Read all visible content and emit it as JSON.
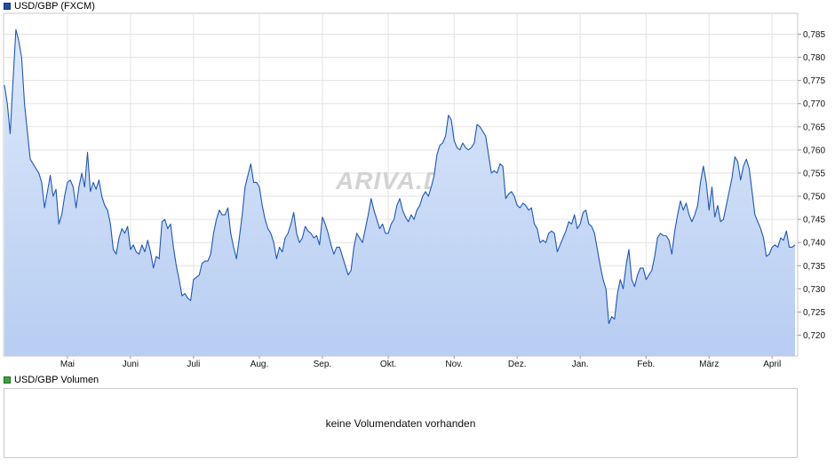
{
  "price_legend": {
    "label": "USD/GBP (FXCM)",
    "color": "#1f4fa0"
  },
  "volume_legend": {
    "label": "USD/GBP Volumen",
    "color": "#3aa63a"
  },
  "volume_panel": {
    "message": "keine Volumendaten vorhanden"
  },
  "watermark": {
    "text": "ARIVA.DE"
  },
  "colors": {
    "line": "#1f57b8",
    "fill_top": "#dde9fb",
    "fill_bottom": "#b7cdf2",
    "grid": "#e3e3e3",
    "frame": "#c9c9c9"
  },
  "chart_data": {
    "type": "area",
    "title": "USD/GBP (FXCM)",
    "xlabel": "",
    "ylabel": "",
    "ylim": [
      0.7155,
      0.7895
    ],
    "yticks": [
      0.72,
      0.725,
      0.73,
      0.735,
      0.74,
      0.745,
      0.75,
      0.755,
      0.76,
      0.765,
      0.77,
      0.775,
      0.78,
      0.785
    ],
    "ytick_labels": [
      "0,720",
      "0,725",
      "0,730",
      "0,735",
      "0,740",
      "0,745",
      "0,750",
      "0,755",
      "0,760",
      "0,765",
      "0,770",
      "0,775",
      "0,780",
      "0,785"
    ],
    "xticks": [
      "Mai",
      "Juni",
      "Juli",
      "Aug.",
      "Sep.",
      "Okt.",
      "Nov.",
      "Dez.",
      "Jan.",
      "Feb.",
      "März",
      "April"
    ],
    "xtick_index": [
      22,
      44,
      66,
      89,
      111,
      134,
      157,
      179,
      201,
      224,
      246,
      268
    ],
    "grid": true,
    "legend": "top-left",
    "series": [
      {
        "name": "USD/GBP (FXCM)",
        "values": [
          0.774,
          0.77,
          0.7635,
          0.775,
          0.786,
          0.7835,
          0.78,
          0.77,
          0.764,
          0.758,
          0.757,
          0.756,
          0.755,
          0.753,
          0.7475,
          0.751,
          0.7545,
          0.75,
          0.7515,
          0.744,
          0.746,
          0.75,
          0.753,
          0.7535,
          0.752,
          0.7475,
          0.752,
          0.755,
          0.752,
          0.7595,
          0.751,
          0.753,
          0.7515,
          0.7535,
          0.75,
          0.748,
          0.747,
          0.744,
          0.7385,
          0.7375,
          0.741,
          0.743,
          0.742,
          0.7435,
          0.7385,
          0.7395,
          0.738,
          0.7375,
          0.7395,
          0.738,
          0.7405,
          0.738,
          0.7345,
          0.737,
          0.7365,
          0.7445,
          0.745,
          0.743,
          0.744,
          0.739,
          0.735,
          0.732,
          0.7285,
          0.729,
          0.728,
          0.7275,
          0.732,
          0.7325,
          0.733,
          0.7355,
          0.736,
          0.736,
          0.7375,
          0.742,
          0.745,
          0.747,
          0.746,
          0.746,
          0.7475,
          0.742,
          0.739,
          0.7365,
          0.741,
          0.746,
          0.752,
          0.7545,
          0.757,
          0.753,
          0.753,
          0.752,
          0.748,
          0.745,
          0.743,
          0.742,
          0.74,
          0.7365,
          0.739,
          0.738,
          0.741,
          0.742,
          0.744,
          0.7465,
          0.742,
          0.74,
          0.741,
          0.7435,
          0.7425,
          0.742,
          0.741,
          0.7415,
          0.7395,
          0.7455,
          0.744,
          0.742,
          0.7395,
          0.7375,
          0.739,
          0.739,
          0.737,
          0.735,
          0.733,
          0.734,
          0.739,
          0.742,
          0.741,
          0.74,
          0.743,
          0.746,
          0.7495,
          0.747,
          0.745,
          0.743,
          0.744,
          0.742,
          0.742,
          0.744,
          0.745,
          0.748,
          0.7495,
          0.747,
          0.7455,
          0.7445,
          0.746,
          0.745,
          0.747,
          0.748,
          0.75,
          0.751,
          0.75,
          0.752,
          0.7545,
          0.759,
          0.761,
          0.7615,
          0.763,
          0.7675,
          0.7665,
          0.762,
          0.7605,
          0.76,
          0.7615,
          0.7605,
          0.76,
          0.7605,
          0.7615,
          0.7655,
          0.765,
          0.764,
          0.763,
          0.759,
          0.755,
          0.7555,
          0.755,
          0.757,
          0.7565,
          0.7495,
          0.7505,
          0.751,
          0.75,
          0.748,
          0.7475,
          0.7485,
          0.748,
          0.747,
          0.7475,
          0.744,
          0.743,
          0.74,
          0.7405,
          0.74,
          0.742,
          0.7425,
          0.742,
          0.738,
          0.7395,
          0.741,
          0.7425,
          0.7445,
          0.744,
          0.746,
          0.743,
          0.744,
          0.7465,
          0.747,
          0.744,
          0.7435,
          0.742,
          0.7385,
          0.735,
          0.732,
          0.73,
          0.7225,
          0.724,
          0.7235,
          0.729,
          0.732,
          0.73,
          0.735,
          0.7385,
          0.732,
          0.7305,
          0.733,
          0.7345,
          0.7345,
          0.732,
          0.733,
          0.734,
          0.737,
          0.741,
          0.742,
          0.7415,
          0.7415,
          0.7405,
          0.7375,
          0.7425,
          0.746,
          0.749,
          0.747,
          0.7485,
          0.746,
          0.7445,
          0.746,
          0.748,
          0.753,
          0.7565,
          0.753,
          0.747,
          0.752,
          0.7455,
          0.748,
          0.7445,
          0.745,
          0.748,
          0.751,
          0.754,
          0.7585,
          0.7575,
          0.7535,
          0.7565,
          0.758,
          0.756,
          0.751,
          0.746,
          0.7445,
          0.743,
          0.741,
          0.737,
          0.7375,
          0.739,
          0.7395,
          0.739,
          0.741,
          0.7405,
          0.7425,
          0.739,
          0.739,
          0.7395
        ]
      }
    ]
  }
}
